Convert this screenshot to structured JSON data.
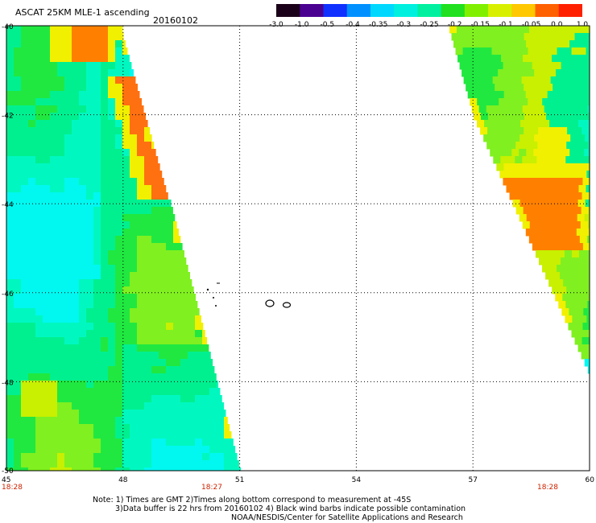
{
  "header": {
    "title": "ASCAT 25KM MLE-1 ascending",
    "date": "20160102"
  },
  "colorbar": {
    "labels": [
      "-3.0",
      "-1.0",
      "-0.5",
      "-0.4",
      "-0.35",
      "-0.3",
      "-0.25",
      "-0.2",
      "-0.15",
      "-0.1",
      "-0.05",
      "0.0",
      "1.0"
    ],
    "colors": [
      "#1a0018",
      "#4a0090",
      "#1030ff",
      "#0090ff",
      "#00d8ff",
      "#00f0e0",
      "#00f0a0",
      "#20e020",
      "#80f000",
      "#d8f000",
      "#ffc800",
      "#ff6000",
      "#ff2000"
    ]
  },
  "map": {
    "y_axis": {
      "ticks": [
        "-40",
        "-42",
        "-44",
        "-46",
        "-48",
        "-50"
      ]
    },
    "x_axis": {
      "ticks": [
        "45",
        "48",
        "51",
        "54",
        "57",
        "60"
      ]
    },
    "times": [
      "18:28",
      "18:27",
      "18:28"
    ],
    "colors": {
      "cyan": "#00f8f0",
      "aqua": "#00f8c0",
      "teal_green": "#00f090",
      "green": "#20e840",
      "lime": "#80f020",
      "yellow_green": "#c8f000",
      "yellow": "#f0f000",
      "orange": "#ff8000",
      "dark_orange": "#ff7010",
      "red": "#ff3000",
      "time_red": "#cc2200"
    }
  },
  "footer": {
    "line1": "Note: 1) Times are GMT 2)Times along bottom correspond to measurement at -45S",
    "line2": "3)Data buffer is 22 hrs from 20160102 4) Black wind barbs indicate possible contamination",
    "line3": "NOAA/NESDIS/Center for Satellite Applications and Research"
  }
}
